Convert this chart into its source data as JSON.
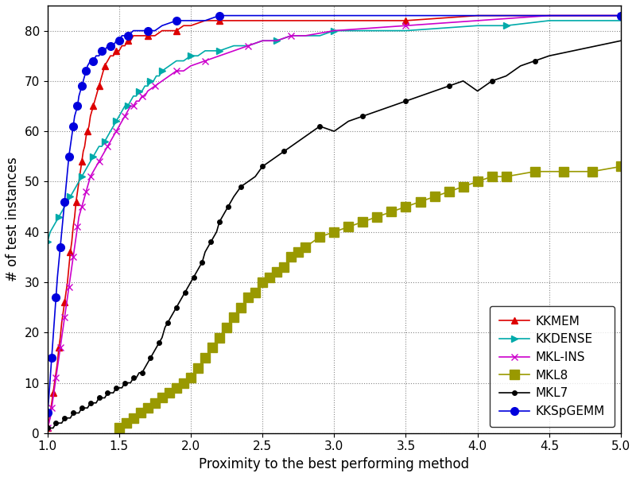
{
  "xlabel": "Proximity to the best performing method",
  "ylabel": "# of test instances",
  "xlim": [
    1.0,
    5.0
  ],
  "ylim": [
    0,
    85
  ],
  "yticks": [
    0,
    10,
    20,
    30,
    40,
    50,
    60,
    70,
    80
  ],
  "xticks": [
    1.0,
    1.5,
    2.0,
    2.5,
    3.0,
    3.5,
    4.0,
    4.5,
    5.0
  ],
  "figwidth": 8.0,
  "figheight": 6.0,
  "dpi": 100,
  "series": [
    {
      "label": "KKMEM",
      "color": "#dd0000",
      "marker": "^",
      "markersize": 6,
      "linewidth": 1.2,
      "markevery": 4,
      "x": [
        1.0,
        1.01,
        1.02,
        1.03,
        1.04,
        1.05,
        1.06,
        1.07,
        1.08,
        1.09,
        1.1,
        1.11,
        1.12,
        1.13,
        1.14,
        1.15,
        1.16,
        1.17,
        1.18,
        1.19,
        1.2,
        1.21,
        1.22,
        1.23,
        1.24,
        1.25,
        1.26,
        1.27,
        1.28,
        1.29,
        1.3,
        1.31,
        1.32,
        1.33,
        1.34,
        1.35,
        1.36,
        1.37,
        1.38,
        1.39,
        1.4,
        1.42,
        1.44,
        1.46,
        1.48,
        1.5,
        1.52,
        1.54,
        1.56,
        1.58,
        1.6,
        1.65,
        1.7,
        1.75,
        1.8,
        1.85,
        1.9,
        1.95,
        2.0,
        2.1,
        2.2,
        2.3,
        2.5,
        3.0,
        3.5,
        4.0,
        5.0
      ],
      "y": [
        1,
        2,
        4,
        6,
        8,
        10,
        12,
        14,
        17,
        19,
        22,
        24,
        26,
        28,
        30,
        33,
        36,
        38,
        41,
        43,
        46,
        48,
        50,
        52,
        54,
        56,
        57,
        59,
        60,
        61,
        63,
        64,
        65,
        66,
        67,
        68,
        69,
        70,
        71,
        72,
        73,
        74,
        75,
        75,
        76,
        76,
        77,
        77,
        78,
        78,
        79,
        79,
        79,
        79,
        80,
        80,
        80,
        81,
        81,
        82,
        82,
        82,
        82,
        82,
        82,
        83,
        83
      ]
    },
    {
      "label": "KKDENSE",
      "color": "#00aaaa",
      "marker": ">",
      "markersize": 6,
      "linewidth": 1.2,
      "markevery": 4,
      "x": [
        1.0,
        1.02,
        1.04,
        1.06,
        1.08,
        1.1,
        1.12,
        1.14,
        1.16,
        1.18,
        1.2,
        1.22,
        1.24,
        1.26,
        1.28,
        1.3,
        1.32,
        1.34,
        1.36,
        1.38,
        1.4,
        1.42,
        1.44,
        1.46,
        1.48,
        1.5,
        1.52,
        1.54,
        1.56,
        1.58,
        1.6,
        1.62,
        1.64,
        1.66,
        1.68,
        1.7,
        1.72,
        1.74,
        1.76,
        1.78,
        1.8,
        1.85,
        1.9,
        1.95,
        2.0,
        2.05,
        2.1,
        2.15,
        2.2,
        2.3,
        2.4,
        2.5,
        2.6,
        2.7,
        2.8,
        2.9,
        3.0,
        3.2,
        3.5,
        4.0,
        4.2,
        4.5,
        5.0
      ],
      "y": [
        38,
        40,
        41,
        42,
        43,
        44,
        45,
        46,
        47,
        48,
        49,
        50,
        51,
        52,
        53,
        54,
        55,
        56,
        57,
        57,
        58,
        59,
        60,
        61,
        62,
        63,
        64,
        65,
        65,
        66,
        67,
        67,
        68,
        68,
        69,
        69,
        70,
        70,
        71,
        71,
        72,
        73,
        74,
        74,
        75,
        75,
        76,
        76,
        76,
        77,
        77,
        78,
        78,
        79,
        79,
        79,
        80,
        80,
        80,
        81,
        81,
        82,
        82
      ]
    },
    {
      "label": "MKL-INS",
      "color": "#cc00cc",
      "marker": "x",
      "markersize": 6,
      "linewidth": 1.2,
      "markevery": 3,
      "x": [
        1.0,
        1.01,
        1.02,
        1.03,
        1.04,
        1.05,
        1.06,
        1.07,
        1.08,
        1.09,
        1.1,
        1.11,
        1.12,
        1.13,
        1.14,
        1.15,
        1.16,
        1.17,
        1.18,
        1.19,
        1.2,
        1.21,
        1.22,
        1.23,
        1.24,
        1.25,
        1.26,
        1.27,
        1.28,
        1.29,
        1.3,
        1.32,
        1.34,
        1.36,
        1.38,
        1.4,
        1.42,
        1.44,
        1.46,
        1.48,
        1.5,
        1.52,
        1.54,
        1.56,
        1.58,
        1.6,
        1.62,
        1.64,
        1.66,
        1.68,
        1.7,
        1.75,
        1.8,
        1.85,
        1.9,
        1.95,
        2.0,
        2.1,
        2.2,
        2.3,
        2.4,
        2.5,
        2.6,
        2.7,
        2.8,
        3.0,
        3.5,
        4.0,
        4.5,
        5.0
      ],
      "y": [
        1,
        2,
        3,
        5,
        7,
        9,
        11,
        13,
        15,
        17,
        19,
        21,
        23,
        25,
        27,
        29,
        31,
        33,
        35,
        37,
        39,
        41,
        43,
        44,
        45,
        46,
        47,
        48,
        49,
        50,
        51,
        52,
        53,
        54,
        55,
        56,
        57,
        58,
        59,
        60,
        61,
        62,
        63,
        64,
        65,
        65,
        66,
        66,
        67,
        67,
        68,
        69,
        70,
        71,
        72,
        72,
        73,
        74,
        75,
        76,
        77,
        78,
        78,
        79,
        79,
        80,
        81,
        82,
        83,
        83
      ]
    },
    {
      "label": "MKL8",
      "color": "#999900",
      "marker": "s",
      "markersize": 8,
      "linewidth": 1.2,
      "markevery": 1,
      "x": [
        1.5,
        1.55,
        1.6,
        1.65,
        1.7,
        1.75,
        1.8,
        1.85,
        1.9,
        1.95,
        2.0,
        2.05,
        2.1,
        2.15,
        2.2,
        2.25,
        2.3,
        2.35,
        2.4,
        2.45,
        2.5,
        2.55,
        2.6,
        2.65,
        2.7,
        2.75,
        2.8,
        2.9,
        3.0,
        3.1,
        3.2,
        3.3,
        3.4,
        3.5,
        3.6,
        3.7,
        3.8,
        3.9,
        4.0,
        4.1,
        4.2,
        4.4,
        4.6,
        4.8,
        5.0
      ],
      "y": [
        1,
        2,
        3,
        4,
        5,
        6,
        7,
        8,
        9,
        10,
        11,
        13,
        15,
        17,
        19,
        21,
        23,
        25,
        27,
        28,
        30,
        31,
        32,
        33,
        35,
        36,
        37,
        39,
        40,
        41,
        42,
        43,
        44,
        45,
        46,
        47,
        48,
        49,
        50,
        51,
        51,
        52,
        52,
        52,
        53
      ]
    },
    {
      "label": "MKL7",
      "color": "#000000",
      "marker": "o",
      "markersize": 4,
      "linewidth": 1.2,
      "markevery": 3,
      "x": [
        1.0,
        1.02,
        1.04,
        1.06,
        1.08,
        1.1,
        1.12,
        1.14,
        1.16,
        1.18,
        1.2,
        1.22,
        1.24,
        1.26,
        1.28,
        1.3,
        1.32,
        1.34,
        1.36,
        1.38,
        1.4,
        1.42,
        1.44,
        1.46,
        1.48,
        1.5,
        1.52,
        1.54,
        1.56,
        1.58,
        1.6,
        1.62,
        1.64,
        1.66,
        1.68,
        1.7,
        1.72,
        1.74,
        1.76,
        1.78,
        1.8,
        1.82,
        1.84,
        1.86,
        1.88,
        1.9,
        1.92,
        1.94,
        1.96,
        1.98,
        2.0,
        2.02,
        2.04,
        2.06,
        2.08,
        2.1,
        2.12,
        2.14,
        2.16,
        2.18,
        2.2,
        2.22,
        2.24,
        2.26,
        2.28,
        2.3,
        2.35,
        2.4,
        2.45,
        2.5,
        2.55,
        2.6,
        2.65,
        2.7,
        2.8,
        2.9,
        3.0,
        3.1,
        3.2,
        3.3,
        3.4,
        3.5,
        3.6,
        3.7,
        3.8,
        3.9,
        4.0,
        4.1,
        4.2,
        4.3,
        4.4,
        4.5,
        5.0
      ],
      "y": [
        1,
        1,
        1,
        2,
        2,
        2,
        3,
        3,
        3,
        4,
        4,
        4,
        5,
        5,
        5,
        6,
        6,
        6,
        7,
        7,
        7,
        8,
        8,
        8,
        9,
        9,
        9,
        10,
        10,
        10,
        11,
        11,
        12,
        12,
        13,
        14,
        15,
        16,
        17,
        18,
        19,
        21,
        22,
        23,
        24,
        25,
        26,
        27,
        28,
        29,
        30,
        31,
        32,
        33,
        34,
        36,
        37,
        38,
        39,
        40,
        42,
        43,
        44,
        45,
        46,
        47,
        49,
        50,
        51,
        53,
        54,
        55,
        56,
        57,
        59,
        61,
        60,
        62,
        63,
        64,
        65,
        66,
        67,
        68,
        69,
        70,
        68,
        70,
        71,
        73,
        74,
        75,
        78
      ]
    },
    {
      "label": "KKSpGEMM",
      "color": "#0000dd",
      "marker": "o",
      "markersize": 7,
      "linewidth": 1.2,
      "markevery": 3,
      "x": [
        1.0,
        1.01,
        1.02,
        1.03,
        1.04,
        1.05,
        1.06,
        1.07,
        1.08,
        1.09,
        1.1,
        1.11,
        1.12,
        1.13,
        1.14,
        1.15,
        1.16,
        1.17,
        1.18,
        1.19,
        1.2,
        1.21,
        1.22,
        1.23,
        1.24,
        1.25,
        1.26,
        1.27,
        1.28,
        1.3,
        1.32,
        1.34,
        1.36,
        1.38,
        1.4,
        1.42,
        1.44,
        1.46,
        1.48,
        1.5,
        1.52,
        1.54,
        1.56,
        1.6,
        1.65,
        1.7,
        1.75,
        1.8,
        1.9,
        2.0,
        2.1,
        2.2,
        3.0,
        4.0,
        5.0
      ],
      "y": [
        4,
        7,
        11,
        15,
        19,
        23,
        27,
        31,
        34,
        37,
        40,
        43,
        46,
        49,
        52,
        55,
        57,
        59,
        61,
        63,
        64,
        65,
        67,
        68,
        69,
        70,
        71,
        72,
        73,
        74,
        74,
        75,
        75,
        76,
        76,
        77,
        77,
        77,
        78,
        78,
        79,
        79,
        79,
        80,
        80,
        80,
        80,
        81,
        82,
        82,
        82,
        83,
        83,
        83,
        83
      ]
    }
  ]
}
